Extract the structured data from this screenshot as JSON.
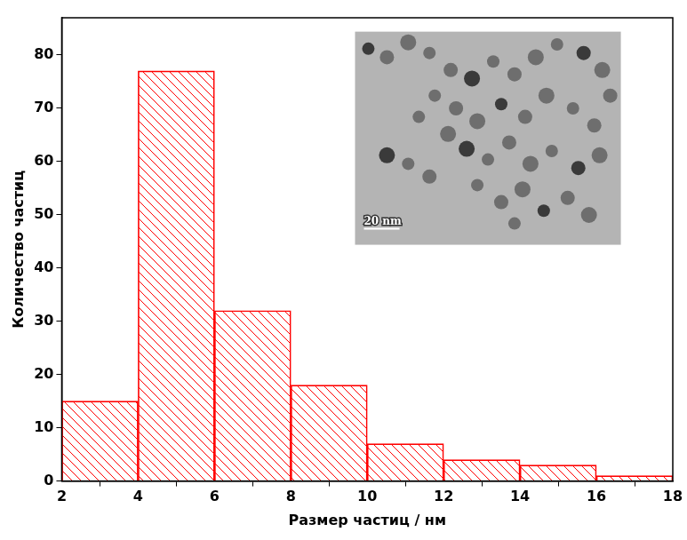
{
  "chart_data": {
    "type": "histogram",
    "bins": [
      2,
      4,
      6,
      8,
      10,
      12,
      14,
      16,
      18
    ],
    "values": [
      15,
      77,
      32,
      18,
      7,
      4,
      3,
      1
    ],
    "color": "#ff0000",
    "x_label": "Размер частиц / нм",
    "y_label": "Количество частиц",
    "annotation": "20 nm",
    "xlim": [
      2,
      18
    ],
    "xticks": [
      2,
      4,
      6,
      8,
      10,
      12,
      14,
      16,
      18
    ],
    "ylim": [
      0,
      87
    ],
    "yticks": [
      0,
      10,
      20,
      30,
      40,
      50,
      60,
      70,
      80
    ],
    "grid": false
  }
}
